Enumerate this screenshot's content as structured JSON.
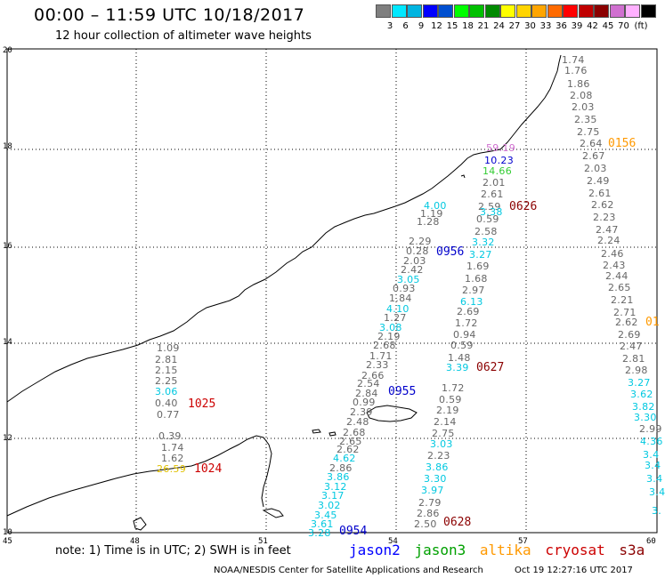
{
  "header": {
    "title": "00:00 – 11:59 UTC 10/18/2017",
    "subtitle": "12 hour collection of altimeter wave heights"
  },
  "colorbar": {
    "unit_label": "(ft)",
    "colors": [
      "#7f7f7f",
      "#00e8ff",
      "#00b4e0",
      "#0000ff",
      "#004fd0",
      "#00ff00",
      "#00c000",
      "#008a00",
      "#ffff00",
      "#ffd400",
      "#ffa500",
      "#ff6a00",
      "#ff0000",
      "#c00000",
      "#8b0000",
      "#d070d0",
      "#ffb0ff",
      "#000000"
    ],
    "labels": [
      "3",
      "6",
      "9",
      "12",
      "15",
      "18",
      "21",
      "24",
      "27",
      "30",
      "33",
      "36",
      "39",
      "42",
      "45",
      "70"
    ]
  },
  "axes": {
    "lat_labels": [
      "20",
      "18",
      "16",
      "14",
      "12",
      "10"
    ],
    "lon_labels": [
      "45",
      "48",
      "51",
      "54",
      "57",
      "60"
    ]
  },
  "satellite_colors": {
    "jason2": "#0000ff",
    "jason3": "#00a000",
    "altika": "#ff9900",
    "cryosat": "#cc0000",
    "s3a": "#8b0000"
  },
  "tracks": [
    {
      "time": "0156",
      "color": "#ff9900",
      "values": [
        {
          "v": "1.74",
          "c": "#666666"
        },
        {
          "v": "1.76",
          "c": "#666666"
        },
        {
          "v": "1.86",
          "c": "#666666"
        },
        {
          "v": "2.08",
          "c": "#666666"
        },
        {
          "v": "2.03",
          "c": "#666666"
        },
        {
          "v": "2.35",
          "c": "#666666"
        },
        {
          "v": "2.75",
          "c": "#666666"
        },
        {
          "v": "2.64",
          "c": "#666666"
        },
        {
          "v": "2.67",
          "c": "#666666"
        },
        {
          "v": "2.03",
          "c": "#666666"
        },
        {
          "v": "2.49",
          "c": "#666666"
        },
        {
          "v": "2.61",
          "c": "#666666"
        },
        {
          "v": "2.62",
          "c": "#666666"
        },
        {
          "v": "2.23",
          "c": "#666666"
        },
        {
          "v": "2.47",
          "c": "#666666"
        },
        {
          "v": "2.24",
          "c": "#666666"
        },
        {
          "v": "2.46",
          "c": "#666666"
        },
        {
          "v": "2.43",
          "c": "#666666"
        },
        {
          "v": "2.44",
          "c": "#666666"
        },
        {
          "v": "2.65",
          "c": "#666666"
        },
        {
          "v": "2.21",
          "c": "#666666"
        },
        {
          "v": "2.71",
          "c": "#666666"
        },
        {
          "v": "2.62",
          "c": "#666666"
        },
        {
          "v": "2.69",
          "c": "#666666"
        },
        {
          "v": "2.47",
          "c": "#666666"
        },
        {
          "v": "2.81",
          "c": "#666666"
        },
        {
          "v": "2.98",
          "c": "#666666"
        },
        {
          "v": "3.27",
          "c": "#00c8e0"
        },
        {
          "v": "3.62",
          "c": "#00c8e0"
        },
        {
          "v": "3.82",
          "c": "#00c8e0"
        },
        {
          "v": "3.30",
          "c": "#00c8e0"
        },
        {
          "v": "2.99",
          "c": "#666666"
        },
        {
          "v": "4.36",
          "c": "#00c8e0"
        },
        {
          "v": "3.4",
          "c": "#00c8e0"
        },
        {
          "v": "3.4",
          "c": "#00c8e0"
        },
        {
          "v": "3.4",
          "c": "#00c8e0"
        },
        {
          "v": "3.4",
          "c": "#00c8e0"
        },
        {
          "v": "3.",
          "c": "#00c8e0"
        }
      ]
    },
    {
      "time": "0626",
      "color": "#8b0000",
      "values": [
        {
          "v": "59.19",
          "c": "#d070d0"
        },
        {
          "v": "10.23",
          "c": "#0000cc"
        },
        {
          "v": "14.66",
          "c": "#33cc33"
        },
        {
          "v": "2.01",
          "c": "#666666"
        },
        {
          "v": "2.61",
          "c": "#666666"
        },
        {
          "v": "2.59",
          "c": "#666666"
        },
        {
          "v": "3.38",
          "c": "#00c8e0"
        },
        {
          "v": "0.59",
          "c": "#666666"
        },
        {
          "v": "2.58",
          "c": "#666666"
        },
        {
          "v": "3.32",
          "c": "#00c8e0"
        },
        {
          "v": "3.27",
          "c": "#00c8e0"
        },
        {
          "v": "1.69",
          "c": "#666666"
        },
        {
          "v": "1.68",
          "c": "#666666"
        },
        {
          "v": "2.97",
          "c": "#666666"
        },
        {
          "v": "6.13",
          "c": "#00c8e0"
        },
        {
          "v": "2.69",
          "c": "#666666"
        },
        {
          "v": "1.72",
          "c": "#666666"
        },
        {
          "v": "0.94",
          "c": "#666666"
        },
        {
          "v": "0.59",
          "c": "#666666"
        },
        {
          "v": "1.48",
          "c": "#666666"
        },
        {
          "v": "3.39",
          "c": "#00c8e0"
        }
      ]
    },
    {
      "time": "0627",
      "color": "#8b0000",
      "values": []
    },
    {
      "time": "0628",
      "color": "#8b0000",
      "values": [
        {
          "v": "1.72",
          "c": "#666666"
        },
        {
          "v": "0.59",
          "c": "#666666"
        },
        {
          "v": "2.19",
          "c": "#666666"
        },
        {
          "v": "2.14",
          "c": "#666666"
        },
        {
          "v": "2.75",
          "c": "#666666"
        },
        {
          "v": "3.03",
          "c": "#00c8e0"
        },
        {
          "v": "2.23",
          "c": "#666666"
        },
        {
          "v": "3.86",
          "c": "#00c8e0"
        },
        {
          "v": "3.30",
          "c": "#00c8e0"
        },
        {
          "v": "3.97",
          "c": "#00c8e0"
        },
        {
          "v": "2.79",
          "c": "#666666"
        },
        {
          "v": "2.86",
          "c": "#666666"
        },
        {
          "v": "2.50",
          "c": "#666666"
        }
      ]
    },
    {
      "time": "0956",
      "color": "#0000cc",
      "values": [
        {
          "v": "4.00",
          "c": "#00c8e0"
        },
        {
          "v": "1.19",
          "c": "#666666"
        },
        {
          "v": "1.28",
          "c": "#666666"
        },
        {
          "v": "2.29",
          "c": "#666666"
        },
        {
          "v": "0.28",
          "c": "#666666"
        },
        {
          "v": "2.03",
          "c": "#666666"
        },
        {
          "v": "2.42",
          "c": "#666666"
        },
        {
          "v": "3.05",
          "c": "#00c8e0"
        },
        {
          "v": "0.93",
          "c": "#666666"
        },
        {
          "v": "1.84",
          "c": "#666666"
        },
        {
          "v": "4.10",
          "c": "#00c8e0"
        },
        {
          "v": "1.27",
          "c": "#666666"
        },
        {
          "v": "3.08",
          "c": "#00c8e0"
        },
        {
          "v": "2.19",
          "c": "#666666"
        },
        {
          "v": "2.68",
          "c": "#666666"
        },
        {
          "v": "1.71",
          "c": "#666666"
        },
        {
          "v": "2.33",
          "c": "#666666"
        },
        {
          "v": "2.66",
          "c": "#666666"
        }
      ]
    },
    {
      "time": "0955",
      "color": "#0000cc",
      "values": [
        {
          "v": "2.54",
          "c": "#666666"
        },
        {
          "v": "2.84",
          "c": "#666666"
        },
        {
          "v": "0.99",
          "c": "#666666"
        },
        {
          "v": "2.39",
          "c": "#666666"
        },
        {
          "v": "2.48",
          "c": "#666666"
        },
        {
          "v": "2.68",
          "c": "#666666"
        },
        {
          "v": "2.65",
          "c": "#666666"
        },
        {
          "v": "2.62",
          "c": "#666666"
        }
      ]
    },
    {
      "time": "0954",
      "color": "#0000cc",
      "values": [
        {
          "v": "4.62",
          "c": "#00c8e0"
        },
        {
          "v": "2.86",
          "c": "#666666"
        },
        {
          "v": "3.86",
          "c": "#00c8e0"
        },
        {
          "v": "3.12",
          "c": "#00c8e0"
        },
        {
          "v": "3.17",
          "c": "#00c8e0"
        },
        {
          "v": "3.02",
          "c": "#00c8e0"
        },
        {
          "v": "3.45",
          "c": "#00c8e0"
        },
        {
          "v": "3.61",
          "c": "#00c8e0"
        },
        {
          "v": "3.28",
          "c": "#00c8e0"
        }
      ]
    },
    {
      "time": "1025",
      "color": "#cc0000",
      "values": [
        {
          "v": "1.09",
          "c": "#666666"
        },
        {
          "v": "2.81",
          "c": "#666666"
        },
        {
          "v": "2.15",
          "c": "#666666"
        },
        {
          "v": "2.25",
          "c": "#666666"
        },
        {
          "v": "3.06",
          "c": "#00c8e0"
        },
        {
          "v": "0.40",
          "c": "#666666"
        },
        {
          "v": "0.77",
          "c": "#666666"
        }
      ]
    },
    {
      "time": "1024",
      "color": "#cc0000",
      "values": [
        {
          "v": "0.39",
          "c": "#666666"
        },
        {
          "v": "1.74",
          "c": "#666666"
        },
        {
          "v": "1.62",
          "c": "#666666"
        },
        {
          "v": "26.59",
          "c": "#e0c000"
        }
      ]
    },
    {
      "time": "01",
      "color": "#ff9900",
      "values": []
    }
  ],
  "footer": {
    "note": "note: 1) Time is in UTC; 2) SWH is in feet",
    "legend": [
      "jason2",
      "jason3",
      "altika",
      "cryosat",
      "s3a"
    ],
    "credit": "NOAA/NESDIS Center for Satellite Applications and Research",
    "timestamp": "Oct 19 12:27:16 UTC 2017"
  }
}
